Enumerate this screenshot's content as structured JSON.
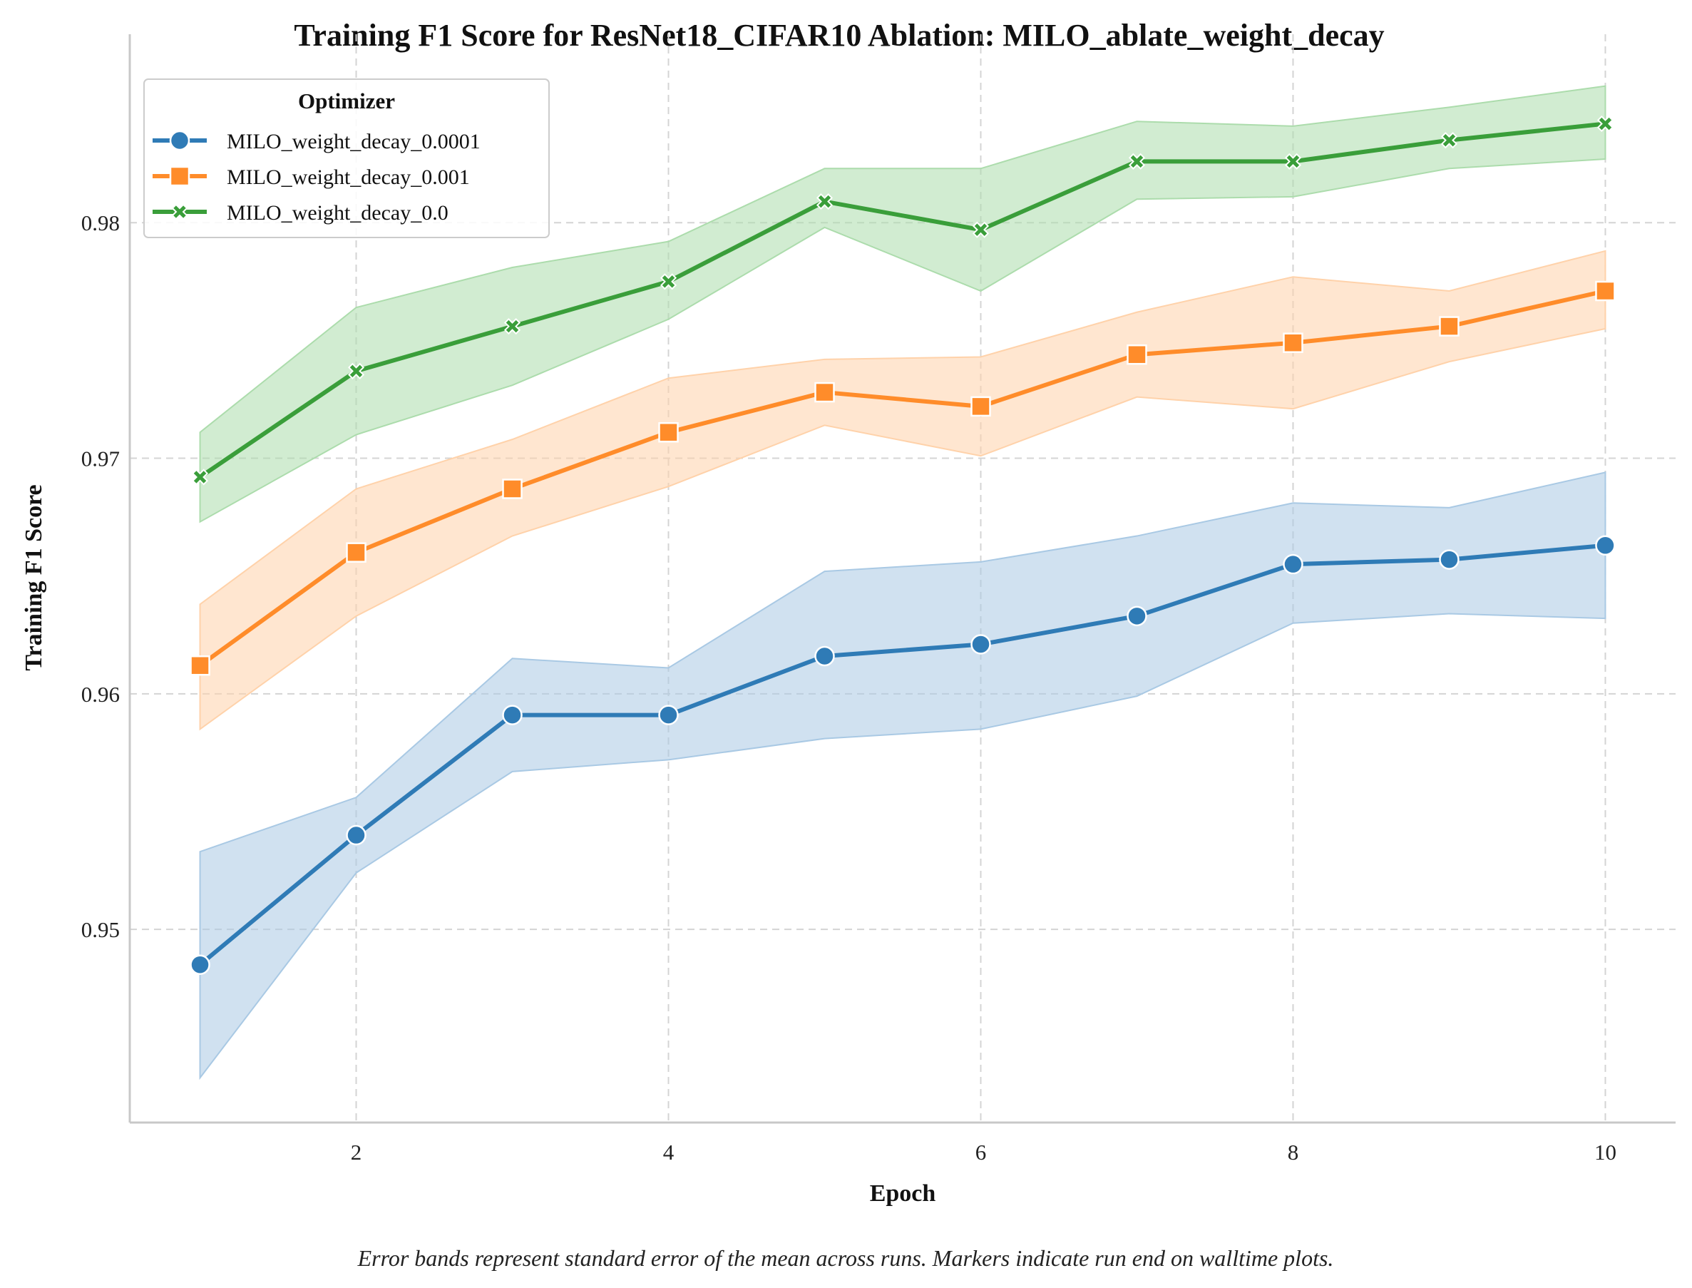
{
  "chart_data": {
    "type": "line",
    "title": "Training F1 Score for ResNet18_CIFAR10 Ablation: MILO_ablate_weight_decay",
    "xlabel": "Epoch",
    "ylabel": "Training F1 Score",
    "xlim": [
      0.55,
      10.45
    ],
    "ylim": [
      0.9418,
      0.988
    ],
    "xticks": [
      2,
      4,
      6,
      8,
      10
    ],
    "xtick_labels": [
      "2",
      "4",
      "6",
      "8",
      "10"
    ],
    "yticks": [
      0.95,
      0.96,
      0.97,
      0.98
    ],
    "ytick_labels": [
      "0.95",
      "0.96",
      "0.97",
      "0.98"
    ],
    "grid": true,
    "legend": {
      "title": "Optimizer",
      "placement": "top-left"
    },
    "caption": "Error bands represent standard error of the mean across runs. Markers indicate run end on walltime plots.",
    "x": [
      1,
      2,
      3,
      4,
      5,
      6,
      7,
      8,
      9,
      10
    ],
    "series": [
      {
        "name": "MILO_weight_decay_0.0001",
        "color": "#2f7bb6",
        "band_color": "#a9c9e4",
        "marker": "circle",
        "values": [
          0.9485,
          0.954,
          0.9591,
          0.9591,
          0.9616,
          0.9621,
          0.9633,
          0.9655,
          0.9657,
          0.9663
        ],
        "lower": [
          0.9437,
          0.9524,
          0.9567,
          0.9572,
          0.9581,
          0.9585,
          0.9599,
          0.963,
          0.9634,
          0.9632
        ],
        "upper": [
          0.9533,
          0.9556,
          0.9615,
          0.9611,
          0.9652,
          0.9656,
          0.9667,
          0.9681,
          0.9679,
          0.9694
        ]
      },
      {
        "name": "MILO_weight_decay_0.001",
        "color": "#ff8c2a",
        "band_color": "#ffd2aa",
        "marker": "square",
        "values": [
          0.9612,
          0.966,
          0.9687,
          0.9711,
          0.9728,
          0.9722,
          0.9744,
          0.9749,
          0.9756,
          0.9771
        ],
        "lower": [
          0.9585,
          0.9633,
          0.9667,
          0.9688,
          0.9714,
          0.9701,
          0.9726,
          0.9721,
          0.9741,
          0.9755
        ],
        "upper": [
          0.9638,
          0.9687,
          0.9708,
          0.9734,
          0.9742,
          0.9743,
          0.9762,
          0.9777,
          0.9771,
          0.9788
        ]
      },
      {
        "name": "MILO_weight_decay_0.0",
        "color": "#3a9e3a",
        "band_color": "#acdcac",
        "marker": "x",
        "values": [
          0.9692,
          0.9737,
          0.9756,
          0.9775,
          0.9809,
          0.9797,
          0.9826,
          0.9826,
          0.9835,
          0.9842
        ],
        "lower": [
          0.9673,
          0.971,
          0.9731,
          0.9759,
          0.9798,
          0.9771,
          0.981,
          0.9811,
          0.9823,
          0.9827
        ],
        "upper": [
          0.9711,
          0.9764,
          0.9781,
          0.9792,
          0.9823,
          0.9823,
          0.9843,
          0.9841,
          0.9849,
          0.9858
        ]
      }
    ]
  }
}
